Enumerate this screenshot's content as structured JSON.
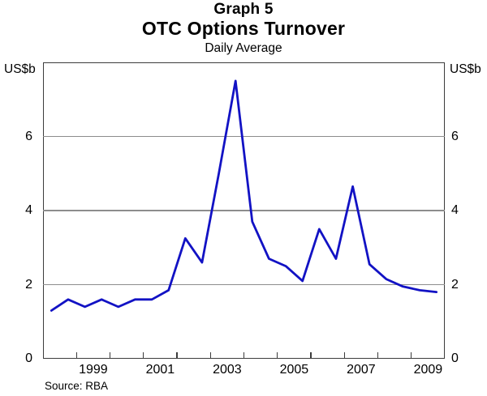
{
  "header": {
    "graph_number": "Graph 5",
    "title": "OTC Options Turnover",
    "subtitle": "Daily Average"
  },
  "axes": {
    "unit_left": "US$b",
    "unit_right": "US$b",
    "y_tick_labels": [
      0,
      2,
      4,
      6
    ],
    "y_gridlines": [
      2,
      4,
      6
    ],
    "x_year_ticks": [
      1999,
      2000,
      2001,
      2002,
      2003,
      2004,
      2005,
      2006,
      2007,
      2008,
      2009
    ],
    "x_year_labels": [
      1999,
      2001,
      2003,
      2005,
      2007,
      2009
    ]
  },
  "footer": {
    "source": "Source: RBA"
  },
  "chart_data": {
    "type": "line",
    "title": "Graph 5 — OTC Options Turnover",
    "subtitle": "Daily Average",
    "ylabel": "US$b",
    "ylim": [
      0,
      8
    ],
    "xlim_years": [
      1998,
      2010
    ],
    "grid": "horizontal",
    "legend_position": "none",
    "line_color": "#1212c4",
    "x": [
      "1998 H1",
      "1998 H2",
      "1999 H1",
      "1999 H2",
      "2000 H1",
      "2000 H2",
      "2001 H1",
      "2001 H2",
      "2002 H1",
      "2002 H2",
      "2003 H1",
      "2003 H2",
      "2004 H1",
      "2004 H2",
      "2005 H1",
      "2005 H2",
      "2006 H1",
      "2006 H2",
      "2007 H1",
      "2007 H2",
      "2008 H1",
      "2008 H2",
      "2009 H1",
      "2009 H2"
    ],
    "series": [
      {
        "name": "OTC options turnover, daily average (US$b)",
        "values": [
          1.3,
          1.6,
          1.4,
          1.6,
          1.4,
          1.6,
          1.6,
          1.85,
          3.25,
          2.6,
          5.0,
          7.5,
          3.7,
          2.7,
          2.5,
          2.1,
          3.5,
          2.7,
          4.65,
          2.55,
          2.15,
          1.95,
          1.85,
          1.8
        ]
      }
    ]
  }
}
